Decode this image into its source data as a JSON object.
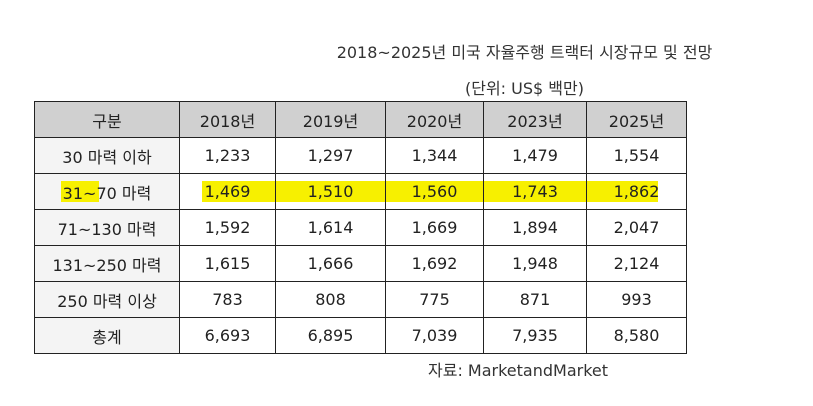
{
  "title": "2018~2025년 미국 자율주행 트랙터 시장규모 및 전망",
  "unit": "(단위: US$ 백만)",
  "source": "자료: MarketandMarket",
  "highlight_color": "#f7f000",
  "header_bg": "#d0d0d0",
  "table": {
    "headers": [
      "구분",
      "2018년",
      "2019년",
      "2020년",
      "2023년",
      "2025년"
    ],
    "rows": [
      [
        "30 마력 이하",
        "1,233",
        "1,297",
        "1,344",
        "1,479",
        "1,554"
      ],
      [
        "31~70 마력",
        "1,469",
        "1,510",
        "1,560",
        "1,743",
        "1,862"
      ],
      [
        "71~130 마력",
        "1,592",
        "1,614",
        "1,669",
        "1,894",
        "2,047"
      ],
      [
        "131~250 마력",
        "1,615",
        "1,666",
        "1,692",
        "1,948",
        "2,124"
      ],
      [
        "250 마력 이상",
        "783",
        "808",
        "775",
        "871",
        "993"
      ],
      [
        "총계",
        "6,693",
        "6,895",
        "7,039",
        "7,935",
        "8,580"
      ]
    ]
  }
}
